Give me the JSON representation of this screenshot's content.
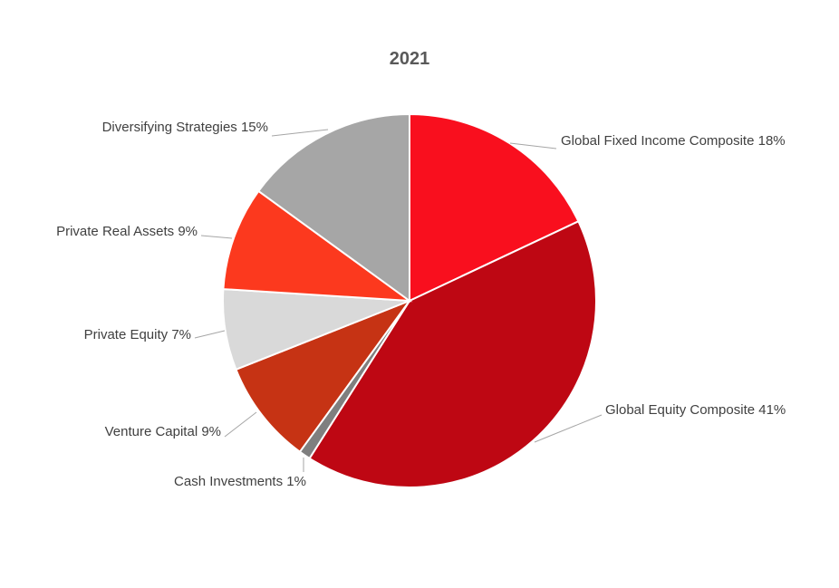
{
  "chart_data": {
    "type": "pie",
    "title": "2021",
    "start_angle_deg": 0,
    "direction": "clockwise",
    "slices": [
      {
        "label": "Global Fixed Income Composite",
        "value": 18,
        "display": "Global Fixed Income Composite 18%",
        "color": "#F90F1E"
      },
      {
        "label": "Global Equity Composite",
        "value": 41,
        "display": "Global Equity Composite 41%",
        "color": "#BE0713"
      },
      {
        "label": "Cash Investments",
        "value": 1,
        "display": "Cash Investments 1%",
        "color": "#7F7F7F"
      },
      {
        "label": "Venture Capital",
        "value": 9,
        "display": "Venture Capital 9%",
        "color": "#C63314"
      },
      {
        "label": "Private Equity",
        "value": 7,
        "display": "Private Equity 7%",
        "color": "#D9D9D9"
      },
      {
        "label": "Private Real Assets",
        "value": 9,
        "display": "Private Real Assets 9%",
        "color": "#FC391E"
      },
      {
        "label": "Diversifying Strategies",
        "value": 15,
        "display": "Diversifying Strategies 15%",
        "color": "#A6A6A6"
      }
    ],
    "legend": "none"
  }
}
